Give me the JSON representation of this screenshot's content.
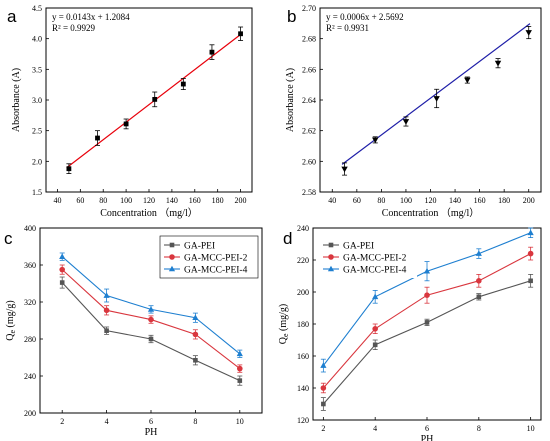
{
  "chart_data": [
    {
      "panel": "a",
      "type": "scatter",
      "xlabel": "Concentration （mg/l）",
      "ylabel": "Absorbance (A)",
      "xlim": [
        30,
        210
      ],
      "ylim": [
        1.5,
        4.5
      ],
      "xticks": [
        40,
        60,
        80,
        100,
        120,
        140,
        160,
        180,
        200
      ],
      "yticks": [
        1.5,
        2.0,
        2.5,
        3.0,
        3.5,
        4.0,
        4.5
      ],
      "xtick_labels": [
        "40",
        "60",
        "80",
        "100",
        "120",
        "140",
        "160",
        "180",
        "200"
      ],
      "ytick_labels": [
        "1.5",
        "2.0",
        "2.5",
        "3.0",
        "3.5",
        "4.0",
        "4.5"
      ],
      "annotations": [
        "y = 0.0143x + 1.2084",
        "R² = 0.9929"
      ],
      "fit": {
        "slope": 0.0143,
        "intercept": 1.2084,
        "color": "#e8000b"
      },
      "marker": "square",
      "points": [
        {
          "x": 50,
          "y": 1.88,
          "err": 0.08
        },
        {
          "x": 75,
          "y": 2.38,
          "err": 0.12
        },
        {
          "x": 100,
          "y": 2.61,
          "err": 0.08
        },
        {
          "x": 125,
          "y": 3.01,
          "err": 0.12
        },
        {
          "x": 150,
          "y": 3.26,
          "err": 0.09
        },
        {
          "x": 175,
          "y": 3.78,
          "err": 0.12
        },
        {
          "x": 200,
          "y": 4.08,
          "err": 0.11
        }
      ]
    },
    {
      "panel": "b",
      "type": "scatter",
      "xlabel": "Concentration （mg/l）",
      "ylabel": "Absorbance (A)",
      "xlim": [
        30,
        210
      ],
      "ylim": [
        2.58,
        2.7
      ],
      "xticks": [
        40,
        60,
        80,
        100,
        120,
        140,
        160,
        180,
        200
      ],
      "yticks": [
        2.58,
        2.6,
        2.62,
        2.64,
        2.66,
        2.68,
        2.7
      ],
      "xtick_labels": [
        "40",
        "60",
        "80",
        "100",
        "120",
        "140",
        "160",
        "180",
        "200"
      ],
      "ytick_labels": [
        "2.58",
        "2.60",
        "2.62",
        "2.64",
        "2.66",
        "2.68",
        "2.70"
      ],
      "annotations": [
        "y = 0.0006x + 2.5692",
        "R² = 0.9931"
      ],
      "fit": {
        "slope": 0.0006,
        "intercept": 2.5692,
        "color": "#1f1fa8"
      },
      "marker": "triangle-down",
      "points": [
        {
          "x": 50,
          "y": 2.595,
          "err": 0.004
        },
        {
          "x": 75,
          "y": 2.614,
          "err": 0.002
        },
        {
          "x": 100,
          "y": 2.626,
          "err": 0.003
        },
        {
          "x": 125,
          "y": 2.641,
          "err": 0.006
        },
        {
          "x": 150,
          "y": 2.653,
          "err": 0.002
        },
        {
          "x": 175,
          "y": 2.664,
          "err": 0.003
        },
        {
          "x": 200,
          "y": 2.684,
          "err": 0.004
        }
      ]
    },
    {
      "panel": "c",
      "type": "line",
      "xlabel": "PH",
      "ylabel": "Qe (mg/g)",
      "xlim": [
        1,
        11
      ],
      "ylim": [
        200,
        400
      ],
      "xticks": [
        2,
        4,
        6,
        8,
        10
      ],
      "yticks": [
        200,
        240,
        280,
        320,
        360,
        400
      ],
      "xtick_labels": [
        "2",
        "4",
        "6",
        "8",
        "10"
      ],
      "ytick_labels": [
        "200",
        "240",
        "280",
        "320",
        "360",
        "400"
      ],
      "legend_position": "top-right",
      "x": [
        2,
        4,
        6,
        8,
        10
      ],
      "series": [
        {
          "name": "GA-PEI",
          "color": "#555555",
          "marker": "square",
          "values": [
            341,
            289,
            280,
            257,
            235
          ],
          "errors": [
            6,
            4,
            4,
            5,
            5
          ]
        },
        {
          "name": "GA-MCC-PEI-2",
          "color": "#d9363e",
          "marker": "circle",
          "values": [
            355,
            311,
            301,
            285,
            248
          ],
          "errors": [
            5,
            5,
            4,
            5,
            4
          ]
        },
        {
          "name": "GA-MCC-PEI-4",
          "color": "#1e7fd0",
          "marker": "triangle",
          "values": [
            369,
            327,
            312,
            303,
            264
          ],
          "errors": [
            4,
            7,
            4,
            5,
            4
          ]
        }
      ]
    },
    {
      "panel": "d",
      "type": "line",
      "xlabel": "PH",
      "ylabel": "Qe (mg/g)",
      "xlim": [
        1.6,
        10.4
      ],
      "ylim": [
        120,
        240
      ],
      "xticks": [
        2,
        4,
        6,
        8,
        10
      ],
      "yticks": [
        120,
        140,
        160,
        180,
        200,
        220,
        240
      ],
      "xtick_labels": [
        "2",
        "4",
        "6",
        "8",
        "10"
      ],
      "ytick_labels": [
        "120",
        "140",
        "160",
        "180",
        "200",
        "220",
        "240"
      ],
      "legend_position": "top-left",
      "x": [
        2,
        4,
        6,
        8,
        10
      ],
      "series": [
        {
          "name": "GA-PEI",
          "color": "#555555",
          "marker": "square",
          "values": [
            130,
            167,
            181,
            197,
            207
          ],
          "errors": [
            4,
            3,
            2,
            2,
            4
          ]
        },
        {
          "name": "GA-MCC-PEI-2",
          "color": "#d9363e",
          "marker": "circle",
          "values": [
            140,
            177,
            198,
            207,
            224
          ],
          "errors": [
            3,
            3,
            5,
            4,
            4
          ]
        },
        {
          "name": "GA-MCC-PEI-4",
          "color": "#1e7fd0",
          "marker": "triangle",
          "values": [
            154,
            197,
            213,
            224,
            237
          ],
          "errors": [
            4,
            4,
            6,
            3,
            3
          ]
        }
      ]
    }
  ]
}
